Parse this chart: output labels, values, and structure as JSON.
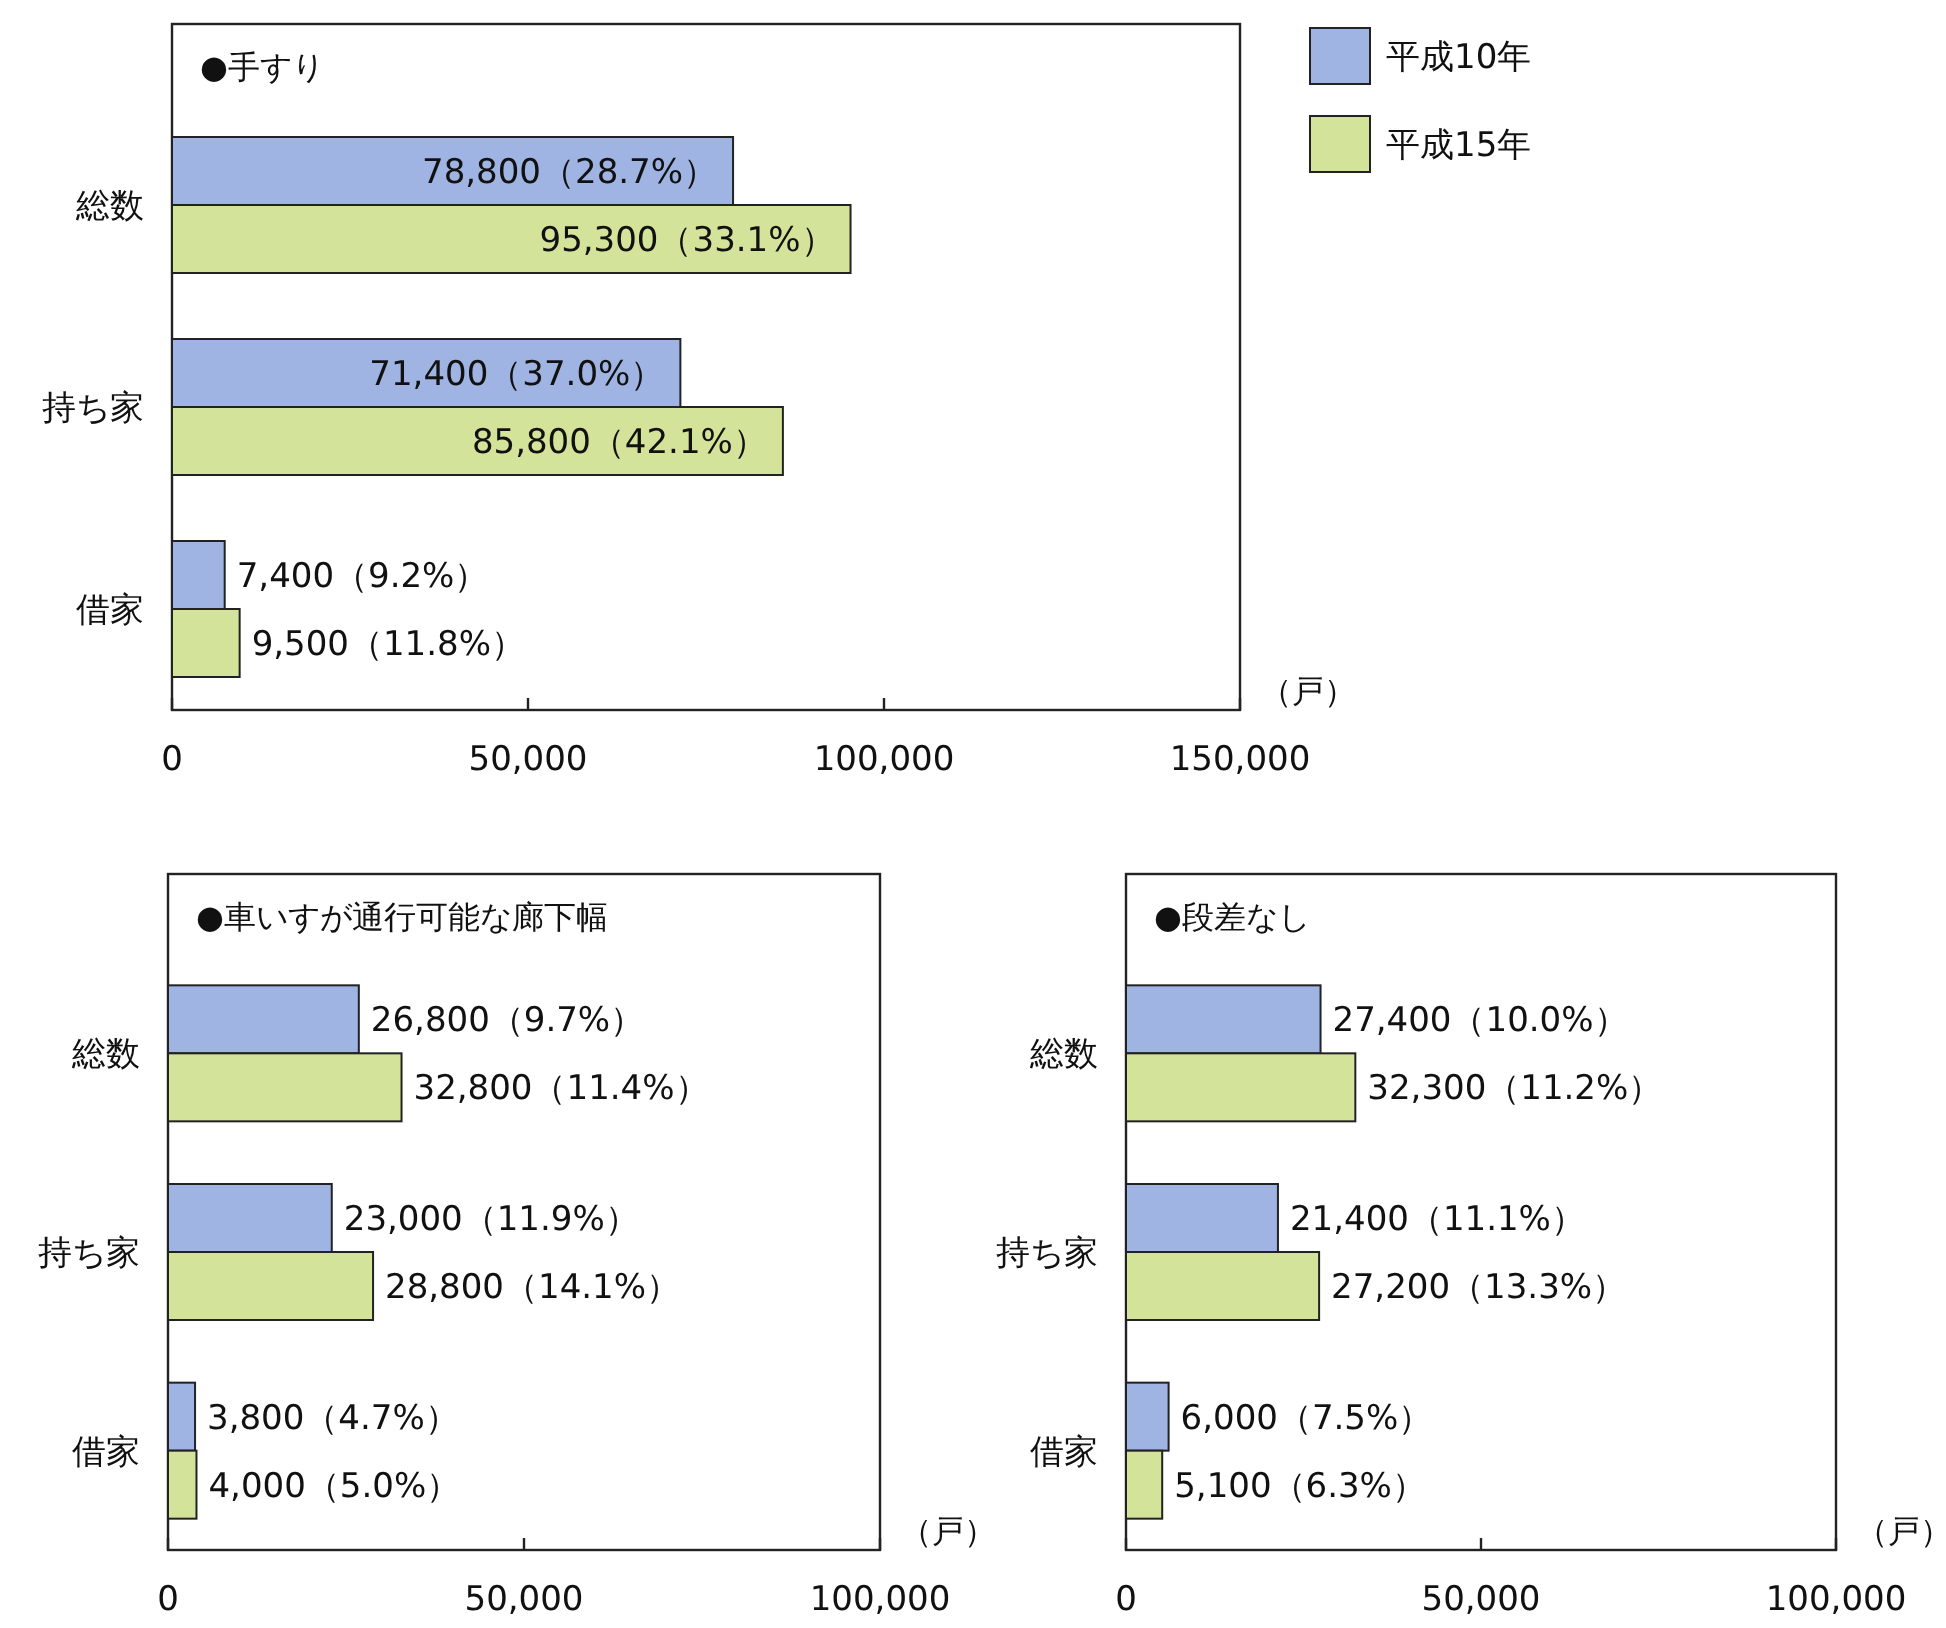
{
  "chart_data": [
    {
      "type": "bar",
      "orientation": "horizontal",
      "title": "●手すり",
      "xlabel": "（戸）",
      "categories": [
        "総数",
        "持ち家",
        "借家"
      ],
      "xlim": [
        0,
        150000
      ],
      "xticks": [
        {
          "value": 0,
          "label": "0"
        },
        {
          "value": 50000,
          "label": "50,000"
        },
        {
          "value": 100000,
          "label": "100,000"
        },
        {
          "value": 150000,
          "label": "150,000"
        }
      ],
      "legend": "right",
      "series": [
        {
          "name": "平成10年",
          "color": "#9fb4e3",
          "values": [
            78800,
            71400,
            7400
          ],
          "value_labels": [
            "78,800（28.7%）",
            "71,400（37.0%）",
            "7,400（9.2%）"
          ]
        },
        {
          "name": "平成15年",
          "color": "#d3e49a",
          "values": [
            95300,
            85800,
            9500
          ],
          "value_labels": [
            "95,300（33.1%）",
            "85,800（42.1%）",
            "9,500（11.8%）"
          ]
        }
      ]
    },
    {
      "type": "bar",
      "orientation": "horizontal",
      "title": "●車いすが通行可能な廊下幅",
      "xlabel": "（戸）",
      "categories": [
        "総数",
        "持ち家",
        "借家"
      ],
      "xlim": [
        0,
        100000
      ],
      "xticks": [
        {
          "value": 0,
          "label": "0"
        },
        {
          "value": 50000,
          "label": "50,000"
        },
        {
          "value": 100000,
          "label": "100,000"
        }
      ],
      "series": [
        {
          "color": "#9fb4e3",
          "values": [
            26800,
            23000,
            3800
          ],
          "value_labels": [
            "26,800（9.7%）",
            "23,000（11.9%）",
            "3,800（4.7%）"
          ]
        },
        {
          "color": "#d3e49a",
          "values": [
            32800,
            28800,
            4000
          ],
          "value_labels": [
            "32,800（11.4%）",
            "28,800（14.1%）",
            "4,000（5.0%）"
          ]
        }
      ]
    },
    {
      "type": "bar",
      "orientation": "horizontal",
      "title": "●段差なし",
      "xlabel": "（戸）",
      "categories": [
        "総数",
        "持ち家",
        "借家"
      ],
      "xlim": [
        0,
        100000
      ],
      "xticks": [
        {
          "value": 0,
          "label": "0"
        },
        {
          "value": 50000,
          "label": "50,000"
        },
        {
          "value": 100000,
          "label": "100,000"
        }
      ],
      "series": [
        {
          "color": "#9fb4e3",
          "values": [
            27400,
            21400,
            6000
          ],
          "value_labels": [
            "27,400（10.0%）",
            "21,400（11.1%）",
            "6,000（7.5%）"
          ]
        },
        {
          "color": "#d3e49a",
          "values": [
            32300,
            27200,
            5100
          ],
          "value_labels": [
            "32,300（11.2%）",
            "27,200（13.3%）",
            "5,100（6.3%）"
          ]
        }
      ]
    }
  ]
}
